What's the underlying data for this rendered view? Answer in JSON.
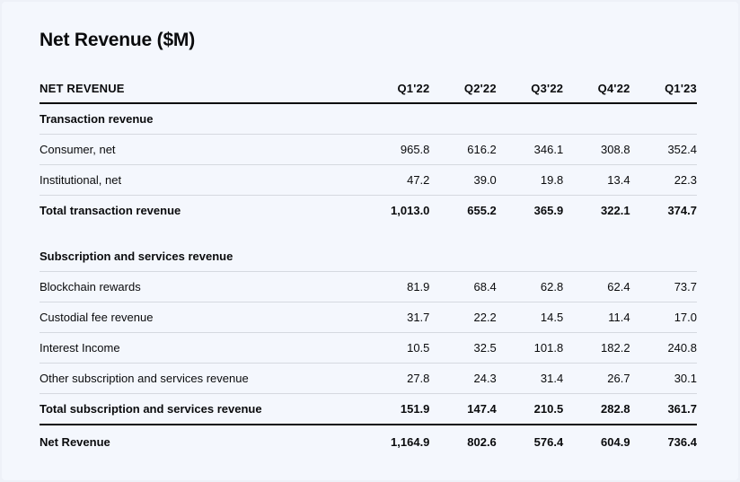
{
  "chart_data": {
    "type": "table",
    "title": "Net Revenue ($M)",
    "columns": [
      "NET REVENUE",
      "Q1'22",
      "Q2'22",
      "Q3'22",
      "Q4'22",
      "Q1'23"
    ],
    "sections": [
      {
        "heading": "Transaction revenue",
        "rows": [
          {
            "label": "Consumer, net",
            "values": [
              "965.8",
              "616.2",
              "346.1",
              "308.8",
              "352.4"
            ]
          },
          {
            "label": "Institutional, net",
            "values": [
              "47.2",
              "39.0",
              "19.8",
              "13.4",
              "22.3"
            ]
          }
        ],
        "total": {
          "label": "Total transaction revenue",
          "values": [
            "1,013.0",
            "655.2",
            "365.9",
            "322.1",
            "374.7"
          ]
        }
      },
      {
        "heading": "Subscription and services revenue",
        "rows": [
          {
            "label": "Blockchain rewards",
            "values": [
              "81.9",
              "68.4",
              "62.8",
              "62.4",
              "73.7"
            ]
          },
          {
            "label": "Custodial fee revenue",
            "values": [
              "31.7",
              "22.2",
              "14.5",
              "11.4",
              "17.0"
            ]
          },
          {
            "label": "Interest Income",
            "values": [
              "10.5",
              "32.5",
              "101.8",
              "182.2",
              "240.8"
            ]
          },
          {
            "label": "Other subscription and services revenue",
            "values": [
              "27.8",
              "24.3",
              "31.4",
              "26.7",
              "30.1"
            ]
          }
        ],
        "total": {
          "label": "Total subscription and services revenue",
          "values": [
            "151.9",
            "147.4",
            "210.5",
            "282.8",
            "361.7"
          ]
        }
      }
    ],
    "grand_total": {
      "label": "Net Revenue",
      "values": [
        "1,164.9",
        "802.6",
        "576.4",
        "604.9",
        "736.4"
      ]
    }
  }
}
